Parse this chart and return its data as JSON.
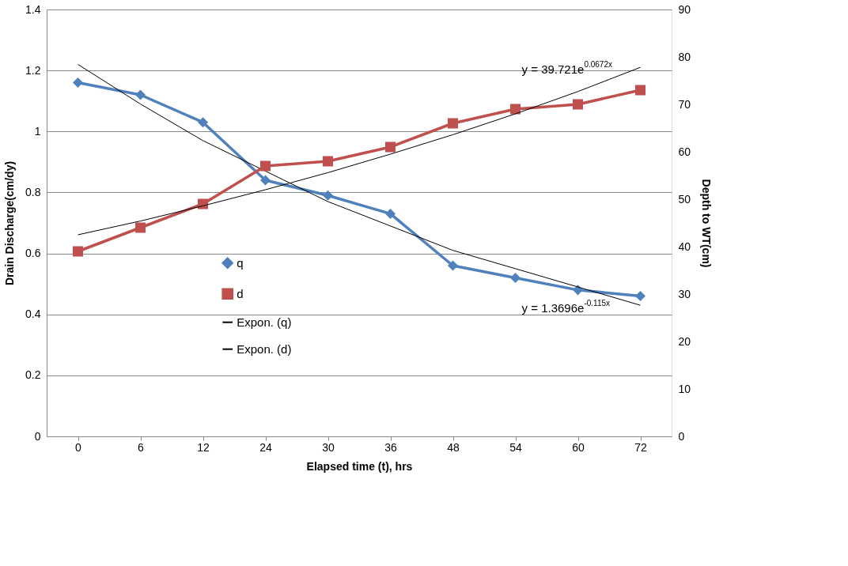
{
  "chart_data": {
    "type": "line",
    "xlabel": "Elapsed time (t), hrs",
    "ylabel": "Drain Discharge(cm/dy)",
    "y2label": "Depth to WT(cm)",
    "categories": [
      "0",
      "6",
      "12",
      "24",
      "30",
      "36",
      "48",
      "54",
      "60",
      "72"
    ],
    "series": [
      {
        "name": "q",
        "color": "#4f81bd",
        "marker": "diamond",
        "values": [
          1.16,
          1.12,
          1.03,
          0.84,
          0.79,
          0.73,
          0.56,
          0.52,
          0.48,
          0.46
        ]
      },
      {
        "name": "d",
        "color": "#c0504d",
        "marker": "square",
        "axis": "y2",
        "values": [
          39,
          44,
          49,
          57,
          58,
          61,
          66,
          69,
          70,
          73
        ]
      },
      {
        "name": "Expon. (q)",
        "color": "#000000",
        "marker": "none",
        "values": [
          1.22,
          1.09,
          0.97,
          0.87,
          0.77,
          0.69,
          0.61,
          0.55,
          0.49,
          0.43
        ]
      },
      {
        "name": "Expon. (d)",
        "color": "#000000",
        "marker": "none",
        "axis": "y2",
        "values": [
          42.5,
          45.4,
          48.6,
          52.0,
          55.6,
          59.5,
          63.6,
          68.0,
          72.7,
          77.8
        ]
      }
    ],
    "ylim": [
      0,
      1.4
    ],
    "yticks": [
      0,
      0.2,
      0.4,
      0.6,
      0.8,
      1,
      1.2,
      1.4
    ],
    "y2lim": [
      0,
      90
    ],
    "y2ticks": [
      0,
      10,
      20,
      30,
      40,
      50,
      60,
      70,
      80,
      90
    ],
    "grid": "y",
    "legend": "bottom",
    "annotations": [
      "y = 39.721e$^{0.0672x}$",
      "y = 1.3696e$^{-0.115x}$"
    ]
  }
}
